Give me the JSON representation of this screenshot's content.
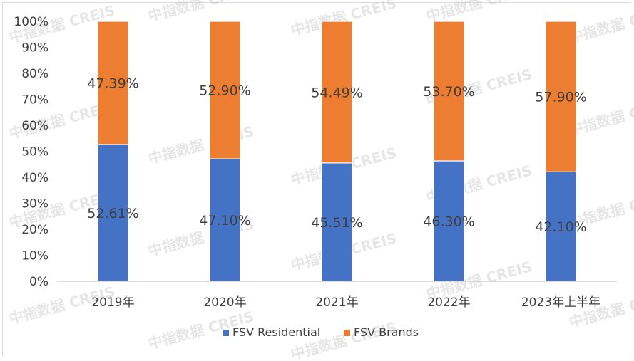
{
  "chart_data": {
    "type": "bar",
    "stacked": true,
    "percent_stacked": true,
    "categories": [
      "2019年",
      "2020年",
      "2021年",
      "2022年",
      "2023年上半年"
    ],
    "series": [
      {
        "name": "FSV Residential",
        "color": "#4472C4",
        "values": [
          52.61,
          47.1,
          45.51,
          46.3,
          42.1
        ],
        "labels": [
          "52.61%",
          "47.10%",
          "45.51%",
          "46.30%",
          "42.10%"
        ]
      },
      {
        "name": "FSV Brands",
        "color": "#ED7D31",
        "values": [
          47.39,
          52.9,
          54.49,
          53.7,
          57.9
        ],
        "labels": [
          "47.39%",
          "52.90%",
          "54.49%",
          "53.70%",
          "57.90%"
        ]
      }
    ],
    "yticks": [
      "0%",
      "10%",
      "20%",
      "30%",
      "40%",
      "50%",
      "60%",
      "70%",
      "80%",
      "90%",
      "100%"
    ],
    "ylim": [
      0,
      100
    ],
    "grid": false,
    "legend": "bottom-center"
  },
  "watermark": "中指数据 CREIS"
}
